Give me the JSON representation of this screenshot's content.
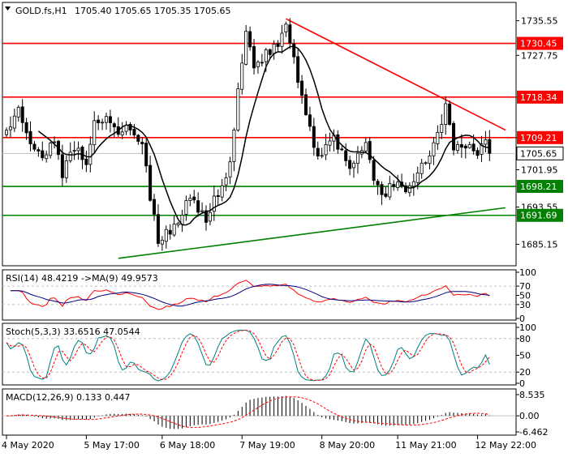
{
  "chart_data": {
    "type": "candlestick",
    "symbol_header": "GOLD.fs,H1",
    "ohlc_header": "1705.40 1705.65 1705.35 1705.65",
    "x_tick_labels": [
      "4 May 2020",
      "5 May 17:00",
      "6 May 18:00",
      "7 May 19:00",
      "8 May 20:00",
      "11 May 21:00",
      "12 May 22:00"
    ],
    "y_axis": {
      "ylim": [
        1680.5,
        1739.5
      ],
      "tick_labels": [
        "1735.55",
        "1727.75",
        "1718.34",
        "1709.21",
        "1701.95",
        "1693.55",
        "1685.15"
      ],
      "tick_values": [
        1735.55,
        1727.75,
        1718.34,
        1709.21,
        1701.95,
        1693.55,
        1685.15
      ],
      "level_tags": [
        {
          "label": "1730.45",
          "value": 1730.45,
          "color": "#ff0000"
        },
        {
          "label": "1718.34",
          "value": 1718.34,
          "color": "#ff0000"
        },
        {
          "label": "1709.21",
          "value": 1709.21,
          "color": "#ff0000"
        },
        {
          "label": "1705.65",
          "value": 1705.65,
          "color": "#ffffff"
        },
        {
          "label": "1698.21",
          "value": 1698.21,
          "color": "#008000"
        },
        {
          "label": "1691.69",
          "value": 1691.69,
          "color": "#008000"
        }
      ]
    },
    "horizontal_levels": [
      {
        "value": 1730.45,
        "color": "#ff0000"
      },
      {
        "value": 1718.34,
        "color": "#ff0000"
      },
      {
        "value": 1709.21,
        "color": "#ff0000"
      },
      {
        "value": 1698.21,
        "color": "#008000"
      },
      {
        "value": 1691.69,
        "color": "#008000"
      }
    ],
    "bid_line": {
      "value": 1705.65,
      "color": "#c0c0c0"
    },
    "trendlines": [
      {
        "bar_from": 70,
        "price_from": 1736.0,
        "bar_to": 125,
        "price_to": 1710.9,
        "color": "#ff0000"
      },
      {
        "bar_from": 28,
        "price_from": 1682.0,
        "bar_to": 125,
        "price_to": 1693.4,
        "color": "#008000"
      }
    ],
    "price_waypoints": [
      [
        0,
        1711
      ],
      [
        3,
        1716
      ],
      [
        6,
        1708
      ],
      [
        9,
        1704
      ],
      [
        12,
        1709
      ],
      [
        14,
        1701
      ],
      [
        17,
        1707
      ],
      [
        20,
        1703
      ],
      [
        22,
        1712
      ],
      [
        25,
        1714
      ],
      [
        28,
        1711
      ],
      [
        31,
        1712
      ],
      [
        34,
        1708
      ],
      [
        36,
        1696
      ],
      [
        38,
        1686
      ],
      [
        42,
        1689
      ],
      [
        45,
        1694
      ],
      [
        47,
        1695
      ],
      [
        50,
        1690
      ],
      [
        52,
        1696
      ],
      [
        54,
        1698
      ],
      [
        56,
        1703
      ],
      [
        58,
        1720
      ],
      [
        60,
        1733
      ],
      [
        62,
        1725
      ],
      [
        65,
        1728
      ],
      [
        68,
        1730
      ],
      [
        70,
        1734
      ],
      [
        72,
        1727
      ],
      [
        74,
        1718
      ],
      [
        76,
        1712
      ],
      [
        78,
        1704
      ],
      [
        80,
        1707
      ],
      [
        82,
        1709
      ],
      [
        84,
        1706
      ],
      [
        86,
        1703
      ],
      [
        88,
        1705
      ],
      [
        90,
        1707
      ],
      [
        92,
        1700
      ],
      [
        94,
        1696
      ],
      [
        96,
        1698
      ],
      [
        98,
        1698
      ],
      [
        100,
        1698
      ],
      [
        102,
        1700
      ],
      [
        104,
        1703
      ],
      [
        106,
        1706
      ],
      [
        108,
        1710
      ],
      [
        110,
        1716
      ],
      [
        112,
        1707
      ],
      [
        114,
        1706
      ],
      [
        116,
        1707
      ],
      [
        118,
        1706
      ],
      [
        120,
        1708
      ],
      [
        121,
        1705.65
      ]
    ],
    "moving_average": {
      "period": 9,
      "color": "#000000"
    },
    "indicators": {
      "rsi": {
        "header": "RSI(14) 48.4219 ->MA(9) 49.9573",
        "tick_labels": [
          "100",
          "70",
          "50",
          "30",
          "0"
        ],
        "tick_values": [
          100,
          70,
          50,
          30,
          0
        ],
        "ylim": [
          0,
          100
        ],
        "guide_levels": [
          30,
          70
        ],
        "colors": {
          "rsi": "#ff0000",
          "ma": "#000080"
        },
        "last": {
          "rsi": 48.4219,
          "ma": 49.9573
        }
      },
      "stochastic": {
        "header": "Stoch(5,3,3) 33.6516 47.0544",
        "tick_labels": [
          "100",
          "80",
          "50",
          "20",
          "0"
        ],
        "tick_values": [
          100,
          80,
          50,
          20,
          0
        ],
        "ylim": [
          0,
          100
        ],
        "guide_levels": [
          20,
          80
        ],
        "colors": {
          "main": "#008080",
          "signal": "#ff0000"
        },
        "last": {
          "main": 33.6516,
          "signal": 47.0544
        }
      },
      "macd": {
        "header": "MACD(12,26,9) 0.133 0.447",
        "tick_labels": [
          "8.535",
          "0.00",
          "-6.462"
        ],
        "tick_values": [
          8.535,
          0,
          -6.462
        ],
        "ylim": [
          -6.462,
          8.535
        ],
        "colors": {
          "histogram": "#000000",
          "signal": "#ff0000"
        },
        "last": {
          "main": 0.133,
          "signal": 0.447
        }
      }
    },
    "colors": {
      "bull": "#ffffff",
      "bear": "#000000",
      "wick": "#000000",
      "grid": "#c0c0c0"
    },
    "grid": false
  }
}
